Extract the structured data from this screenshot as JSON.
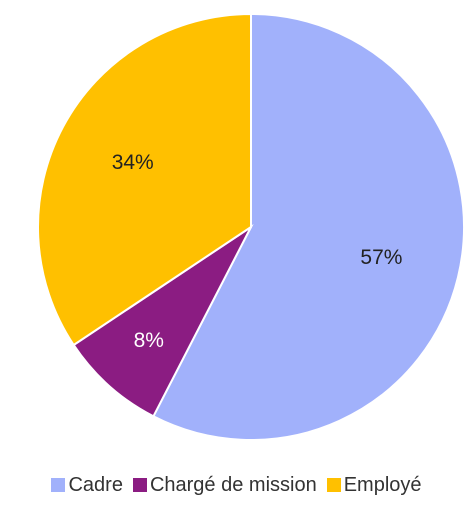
{
  "chart_data": {
    "type": "pie",
    "title": "",
    "start_angle_deg": 0,
    "direction": "clockwise",
    "slices": [
      {
        "label": "Cadre",
        "value": 57,
        "display": "57%",
        "color": "#A1B1FB",
        "label_color": "#222222"
      },
      {
        "label": "Chargé de mission",
        "value": 8,
        "display": "8%",
        "color": "#8B1C82",
        "label_color": "#FFFFFF"
      },
      {
        "label": "Employé",
        "value": 34,
        "display": "34%",
        "color": "#FFC000",
        "label_color": "#222222"
      }
    ],
    "legend": {
      "position": "bottom",
      "entries": [
        "Cadre",
        "Chargé de mission",
        "Employé"
      ]
    }
  }
}
